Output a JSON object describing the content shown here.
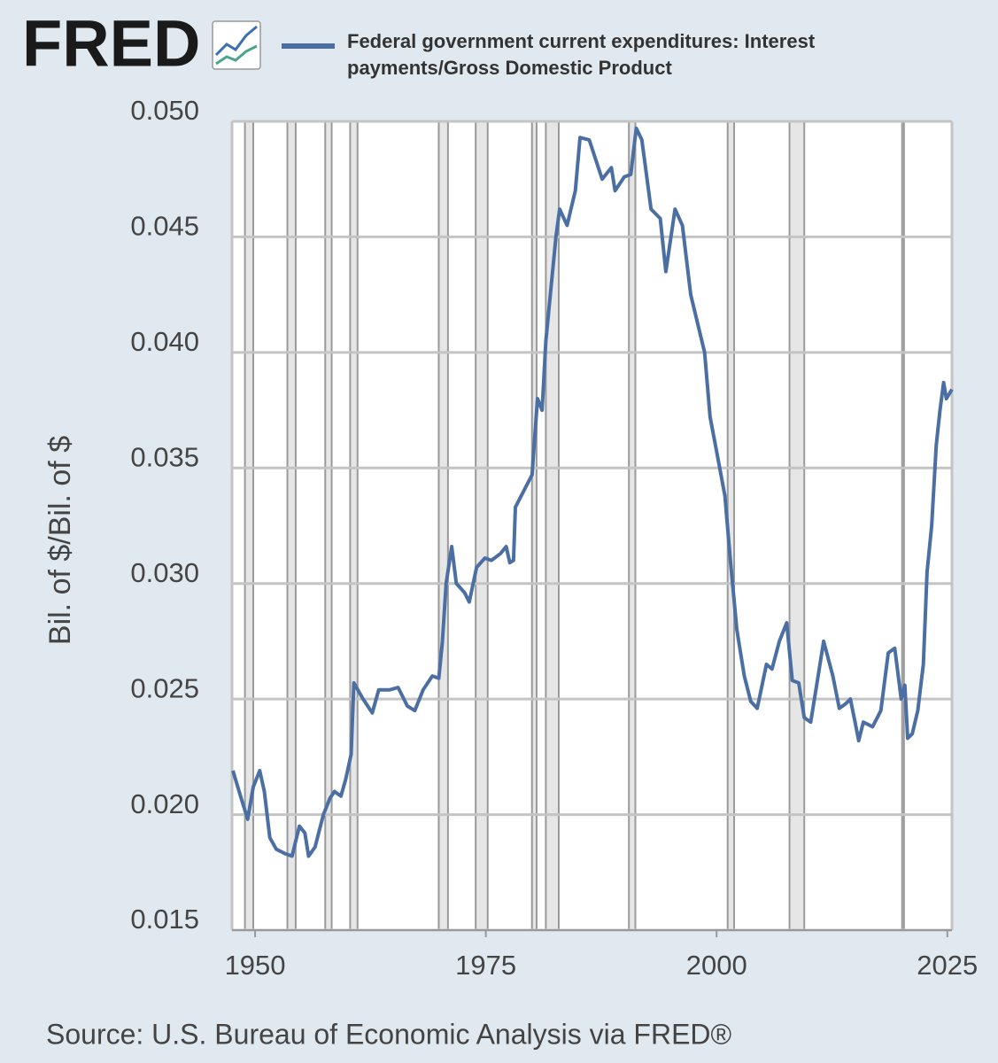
{
  "chart_data": {
    "type": "line",
    "logo": "FRED",
    "y_label": "Bil. of $/Bil. of $",
    "source": "Source: U.S. Bureau of Economic Analysis via FRED®",
    "xlim": [
      1947.5,
      2025.5
    ],
    "xticks": [
      1950,
      1975,
      2000,
      2025
    ],
    "ylim": [
      0.015,
      0.05
    ],
    "yticks": [
      {
        "value": 0.015,
        "label": "0.015"
      },
      {
        "value": 0.02,
        "label": "0.020"
      },
      {
        "value": 0.025,
        "label": "0.025"
      },
      {
        "value": 0.03,
        "label": "0.030"
      },
      {
        "value": 0.035,
        "label": "0.035"
      },
      {
        "value": 0.04,
        "label": "0.040"
      },
      {
        "value": 0.045,
        "label": "0.045"
      },
      {
        "value": 0.05,
        "label": "0.050"
      }
    ],
    "grid": true,
    "recessions": [
      [
        1948.9,
        1949.8
      ],
      [
        1953.5,
        1954.4
      ],
      [
        1957.6,
        1958.3
      ],
      [
        1960.3,
        1961.1
      ],
      [
        1969.9,
        1970.9
      ],
      [
        1973.9,
        1975.2
      ],
      [
        1980.0,
        1980.5
      ],
      [
        1981.5,
        1982.9
      ],
      [
        1990.5,
        1991.2
      ],
      [
        2001.2,
        2001.9
      ],
      [
        2007.9,
        2009.5
      ],
      [
        2020.1,
        2020.3
      ]
    ],
    "x": [
      1947.6,
      1948.5,
      1949.2,
      1949.8,
      1950.5,
      1951.0,
      1951.6,
      1952.3,
      1953.3,
      1954.0,
      1954.8,
      1955.4,
      1955.8,
      1956.5,
      1957.4,
      1958.1,
      1958.6,
      1959.3,
      1959.8,
      1960.4,
      1960.7,
      1961.7,
      1962.7,
      1963.4,
      1964.6,
      1965.5,
      1966.5,
      1967.3,
      1968.2,
      1969.2,
      1969.9,
      1970.3,
      1970.7,
      1971.3,
      1971.8,
      1972.7,
      1973.2,
      1974.0,
      1974.9,
      1975.6,
      1976.6,
      1977.2,
      1977.6,
      1978.0,
      1978.2,
      1980.0,
      1980.6,
      1981.1,
      1981.5,
      1982.6,
      1983.0,
      1983.8,
      1984.7,
      1985.2,
      1986.2,
      1987.6,
      1988.6,
      1989.0,
      1990.0,
      1990.7,
      1991.3,
      1991.9,
      1992.9,
      1993.9,
      1994.5,
      1995.5,
      1996.3,
      1997.2,
      1998.7,
      1999.3,
      2000.1,
      2000.9,
      2001.5,
      2002.2,
      2003.0,
      2003.7,
      2004.4,
      2005.4,
      2006.0,
      2006.8,
      2007.6,
      2008.2,
      2008.9,
      2009.5,
      2010.2,
      2010.8,
      2011.6,
      2012.6,
      2013.3,
      2014.0,
      2014.5,
      2015.0,
      2015.4,
      2015.9,
      2016.9,
      2017.8,
      2018.6,
      2019.3,
      2020.0,
      2020.4,
      2020.7,
      2021.2,
      2021.8,
      2022.4,
      2022.8,
      2023.3,
      2023.8,
      2024.2,
      2024.6,
      2024.9,
      2025.5
    ],
    "series": [
      {
        "name": "Federal government current expenditures: Interest payments/Gross Domestic Product",
        "color": "#4c6fa3",
        "values": [
          0.0219,
          0.0207,
          0.0198,
          0.0212,
          0.0219,
          0.021,
          0.019,
          0.0185,
          0.0183,
          0.0182,
          0.0195,
          0.0192,
          0.0182,
          0.0186,
          0.02,
          0.0207,
          0.021,
          0.0208,
          0.0215,
          0.0226,
          0.0257,
          0.025,
          0.0244,
          0.0254,
          0.0254,
          0.0255,
          0.0247,
          0.0245,
          0.0254,
          0.026,
          0.0259,
          0.0275,
          0.03,
          0.0316,
          0.03,
          0.0296,
          0.0292,
          0.0307,
          0.0311,
          0.031,
          0.0313,
          0.0316,
          0.0309,
          0.031,
          0.0333,
          0.0347,
          0.038,
          0.0375,
          0.0405,
          0.045,
          0.0462,
          0.0455,
          0.047,
          0.0493,
          0.0492,
          0.0475,
          0.048,
          0.047,
          0.0476,
          0.0477,
          0.0497,
          0.0492,
          0.0462,
          0.0458,
          0.0435,
          0.0462,
          0.0455,
          0.0425,
          0.04,
          0.0372,
          0.0355,
          0.0338,
          0.031,
          0.028,
          0.026,
          0.0249,
          0.0246,
          0.0265,
          0.0263,
          0.0275,
          0.0283,
          0.0258,
          0.0257,
          0.0242,
          0.024,
          0.0255,
          0.0275,
          0.026,
          0.0246,
          0.0248,
          0.025,
          0.024,
          0.0232,
          0.024,
          0.0238,
          0.0245,
          0.027,
          0.0272,
          0.025,
          0.0256,
          0.0233,
          0.0235,
          0.0245,
          0.0265,
          0.0305,
          0.0325,
          0.036,
          0.0375,
          0.0387,
          0.038,
          0.0384
        ]
      }
    ]
  }
}
